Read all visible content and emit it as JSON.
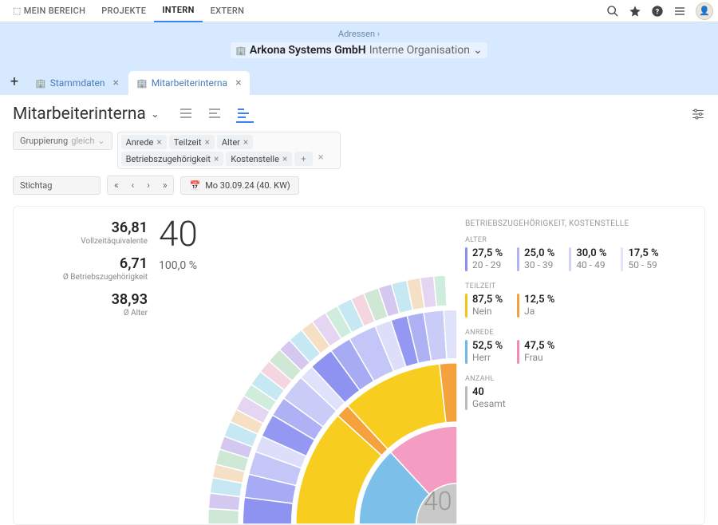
{
  "nav": {
    "items": [
      "MEIN BEREICH",
      "PROJEKTE",
      "INTERN",
      "EXTERN"
    ],
    "active": 2
  },
  "breadcrumb": {
    "path": "Adressen",
    "sep": "›"
  },
  "org": {
    "name": "Arkona Systems GmbH",
    "sub": "Interne Organisation"
  },
  "tabs": [
    {
      "label": "Stammdaten",
      "active": false
    },
    {
      "label": "Mitarbeiterinterna",
      "active": true
    }
  ],
  "page": {
    "title": "Mitarbeiterinterna"
  },
  "grouping": {
    "label": "Gruppierung",
    "op": "gleich",
    "chips": [
      "Anrede",
      "Teilzeit",
      "Alter",
      "Betriebszugehörigkeit",
      "Kostenstelle"
    ]
  },
  "date": {
    "label": "Stichtag",
    "value": "Mo 30.09.24 (40. KW)"
  },
  "stats": [
    {
      "v": "36,81",
      "l": "Vollzeitäquivalente"
    },
    {
      "v": "6,71",
      "l": "Ø Betriebszugehörigkeit"
    },
    {
      "v": "38,93",
      "l": "Ø Alter"
    }
  ],
  "total": {
    "n": "40",
    "pct": "100,0 %"
  },
  "legend": {
    "title": "BETRIEBSZUGEHÖRIGKEIT, KOSTENSTELLE",
    "sections": [
      {
        "label": "ALTER",
        "items": [
          {
            "p": "27,5 %",
            "s": "20 - 29",
            "c": "#8a8ff0"
          },
          {
            "p": "25,0 %",
            "s": "30 - 39",
            "c": "#b0b4f5"
          },
          {
            "p": "30,0 %",
            "s": "40 - 49",
            "c": "#d0d3f8"
          },
          {
            "p": "17,5 %",
            "s": "50 - 59",
            "c": "#e2e4fb"
          }
        ]
      },
      {
        "label": "TEILZEIT",
        "items": [
          {
            "p": "87,5 %",
            "s": "Nein",
            "c": "#f5c417"
          },
          {
            "p": "12,5 %",
            "s": "Ja",
            "c": "#f5a23c"
          }
        ]
      },
      {
        "label": "ANREDE",
        "items": [
          {
            "p": "52,5 %",
            "s": "Herr",
            "c": "#6fb8e8"
          },
          {
            "p": "47,5 %",
            "s": "Frau",
            "c": "#f48ab8"
          }
        ]
      },
      {
        "label": "ANZAHL",
        "items": [
          {
            "p": "40",
            "s": "Gesamt",
            "c": "#bbb"
          }
        ]
      }
    ]
  },
  "sunburst": {
    "center_label": "40",
    "center_color": "#bfbfbf",
    "rings": [
      {
        "r0": 40,
        "r1": 96,
        "segs": [
          {
            "f": 0.525,
            "c": "#7cc0ea"
          },
          {
            "f": 0.475,
            "c": "#f59cc2"
          }
        ]
      },
      {
        "r0": 100,
        "r1": 158,
        "segs": [
          {
            "f": 0.47,
            "c": "#f7ce1f"
          },
          {
            "f": 0.055,
            "c": "#f5a23c"
          },
          {
            "f": 0.405,
            "c": "#f7ce1f"
          },
          {
            "f": 0.07,
            "c": "#f5a23c"
          }
        ]
      },
      {
        "r0": 162,
        "r1": 210,
        "segs": [
          {
            "f": 0.08,
            "c": "#8e93f1"
          },
          {
            "f": 0.07,
            "c": "#a7abf4"
          },
          {
            "f": 0.07,
            "c": "#c3c6f7"
          },
          {
            "f": 0.05,
            "c": "#dcdefa"
          },
          {
            "f": 0.07,
            "c": "#9498f2"
          },
          {
            "f": 0.06,
            "c": "#aeb2f5"
          },
          {
            "f": 0.08,
            "c": "#c9ccf7"
          },
          {
            "f": 0.045,
            "c": "#e0e2fb"
          },
          {
            "f": 0.075,
            "c": "#8e93f1"
          },
          {
            "f": 0.065,
            "c": "#a7abf4"
          },
          {
            "f": 0.085,
            "c": "#c3c6f7"
          },
          {
            "f": 0.05,
            "c": "#dcdefa"
          },
          {
            "f": 0.05,
            "c": "#9498f2"
          },
          {
            "f": 0.05,
            "c": "#aeb2f5"
          },
          {
            "f": 0.06,
            "c": "#c9ccf7"
          },
          {
            "f": 0.04,
            "c": "#e0e2fb"
          }
        ]
      },
      {
        "r0": 214,
        "r1": 244,
        "segs": [
          {
            "f": 0.04,
            "c": "#cfe8d6"
          },
          {
            "f": 0.04,
            "c": "#d5c8f0"
          },
          {
            "f": 0.04,
            "c": "#c6e8f2"
          },
          {
            "f": 0.035,
            "c": "#f5e0c6"
          },
          {
            "f": 0.04,
            "c": "#cfe8d6"
          },
          {
            "f": 0.035,
            "c": "#d5c8f0"
          },
          {
            "f": 0.04,
            "c": "#c6e8f2"
          },
          {
            "f": 0.035,
            "c": "#f5e0c6"
          },
          {
            "f": 0.04,
            "c": "#e4d6f2"
          },
          {
            "f": 0.035,
            "c": "#d0ecdc"
          },
          {
            "f": 0.04,
            "c": "#c6e8f2"
          },
          {
            "f": 0.035,
            "c": "#f5d6e0"
          },
          {
            "f": 0.04,
            "c": "#cfe8d6"
          },
          {
            "f": 0.035,
            "c": "#d5c8f0"
          },
          {
            "f": 0.04,
            "c": "#c6e8f2"
          },
          {
            "f": 0.035,
            "c": "#f5e0c6"
          },
          {
            "f": 0.04,
            "c": "#e4d6f2"
          },
          {
            "f": 0.035,
            "c": "#d0ecdc"
          },
          {
            "f": 0.04,
            "c": "#c6e8f2"
          },
          {
            "f": 0.035,
            "c": "#f5d6e0"
          },
          {
            "f": 0.04,
            "c": "#cfe8d6"
          },
          {
            "f": 0.035,
            "c": "#d5c8f0"
          },
          {
            "f": 0.04,
            "c": "#c6e8f2"
          },
          {
            "f": 0.035,
            "c": "#f5e0c6"
          },
          {
            "f": 0.035,
            "c": "#e4d6f2"
          },
          {
            "f": 0.03,
            "c": "#d0ecdc"
          }
        ]
      }
    ]
  }
}
